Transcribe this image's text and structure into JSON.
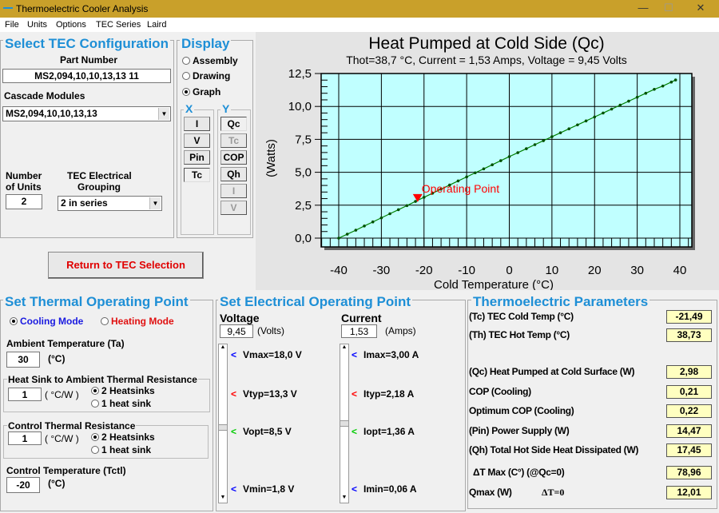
{
  "window": {
    "title": "Thermoelectric Cooler Analysis",
    "minimize": "—",
    "maximize": "☐",
    "close": "✕"
  },
  "menu": [
    "File",
    "Units",
    "Options",
    "TEC Series",
    "Laird"
  ],
  "config": {
    "title": "Select TEC Configuration",
    "part_label": "Part Number",
    "part_value": "MS2,094,10,10,13,13 11",
    "cascade_label": "Cascade Modules",
    "cascade_value": "MS2,094,10,10,13,13",
    "units_label1": "Number",
    "units_label2": "of Units",
    "units_value": "2",
    "grouping_label1": "TEC Electrical",
    "grouping_label2": "Grouping",
    "grouping_value": "2 in series"
  },
  "display": {
    "title": "Display",
    "options": [
      "Assembly",
      "Drawing",
      "Graph"
    ],
    "selected": "Graph",
    "x_label": "X",
    "y_label": "Y",
    "x_buttons": [
      "I",
      "V",
      "Pin",
      "Tc"
    ],
    "y_buttons": [
      "Qc",
      "Tc",
      "COP",
      "Qh",
      "I",
      "V"
    ]
  },
  "return_button": "Return to TEC Selection",
  "chart_data": {
    "type": "line",
    "title": "Heat Pumped at Cold Side (Qc)",
    "subtitle": "Thot=38,7 °C, Current = 1,53 Amps, Voltage = 9,45 Volts",
    "xlabel": "Cold Temperature (°C)",
    "ylabel": "(Watts)",
    "xlim": [
      -45,
      43
    ],
    "ylim": [
      -1.25,
      12.5
    ],
    "xticks": [
      "-40",
      "-30",
      "-20",
      "-10",
      "0",
      "10",
      "20",
      "30",
      "40"
    ],
    "yticks": [
      "0,0",
      "2,5",
      "5,0",
      "7,5",
      "10,0",
      "12,5"
    ],
    "grid": true,
    "background": "#c0ffff",
    "line_color": "#008000",
    "x": [
      -40,
      -38,
      -36,
      -34,
      -32,
      -30,
      -28,
      -26,
      -24,
      -22,
      -20,
      -18,
      -16,
      -14,
      -12,
      -10,
      -8,
      -6,
      -4,
      -2,
      0,
      2,
      4,
      6,
      8,
      10,
      12,
      14,
      16,
      18,
      20,
      22,
      24,
      26,
      28,
      30,
      32,
      34,
      36,
      38,
      39
    ],
    "y": [
      0,
      0.3,
      0.6,
      0.92,
      1.23,
      1.54,
      1.85,
      2.16,
      2.47,
      2.79,
      3.1,
      3.41,
      3.72,
      4.03,
      4.34,
      4.65,
      4.96,
      5.26,
      5.57,
      5.88,
      6.19,
      6.49,
      6.79,
      7.1,
      7.4,
      7.7,
      8.0,
      8.3,
      8.6,
      8.9,
      9.2,
      9.5,
      9.8,
      10.1,
      10.4,
      10.7,
      11.0,
      11.3,
      11.55,
      11.85,
      12.01
    ],
    "operating_point": {
      "x": -21.49,
      "y": 2.98,
      "label": "Operating Point",
      "color": "#ff0000"
    }
  },
  "thermal": {
    "title": "Set Thermal Operating Point",
    "cooling": "Cooling Mode",
    "heating": "Heating Mode",
    "ambient_label": "Ambient Temperature (Ta)",
    "ambient_value": "30",
    "unit_c": "(°C)",
    "hs_label": "Heat Sink to Ambient Thermal Resistance",
    "hs_value": "1",
    "unit_cw": "( °C/W )",
    "opt2": "2 Heatsinks",
    "opt1": "1 heat sink",
    "ctr_label": "Control Thermal Resistance",
    "ctr_value": "1",
    "ctl_label": "Control Temperature (Tctl)",
    "ctl_value": "-20"
  },
  "electrical": {
    "title": "Set Electrical Operating Point",
    "voltage_label": "Voltage",
    "voltage_value": "9,45",
    "voltage_unit": "(Volts)",
    "current_label": "Current",
    "current_value": "1,53",
    "current_unit": "(Amps)",
    "v_marks": [
      "Vmax=18,0 V",
      "Vtyp=13,3 V",
      "Vopt=8,5 V",
      "Vmin=1,8 V"
    ],
    "i_marks": [
      "Imax=3,00 A",
      "Ityp=2,18 A",
      "Iopt=1,36 A",
      "Imin=0,06 A"
    ],
    "marker": "<",
    "colors": [
      "#0000ff",
      "#ff0000",
      "#00cc00",
      "#0000ff"
    ]
  },
  "params": {
    "title": "Thermoelectric Parameters",
    "rows": [
      {
        "label": "(Tc) TEC Cold Temp (°C)",
        "value": "-21,49"
      },
      {
        "label": "(Th) TEC Hot Temp (°C)",
        "value": "38,73"
      },
      {
        "label": "(Qc) Heat Pumped at Cold Surface (W)",
        "value": "2,98"
      },
      {
        "label": "COP (Cooling)",
        "value": "0,21"
      },
      {
        "label": "Optimum COP (Cooling)",
        "value": "0,22"
      },
      {
        "label": "(Pin) Power Supply (W)",
        "value": "14,47"
      },
      {
        "label": "(Qh) Total Hot Side Heat Dissipated (W)",
        "value": "17,45"
      },
      {
        "label": "ΔT Max (C°) (@Qc=0)",
        "value": "78,96"
      },
      {
        "label": "Qmax (W)",
        "value": "12,01"
      }
    ],
    "dt0": "ΔT=0"
  }
}
